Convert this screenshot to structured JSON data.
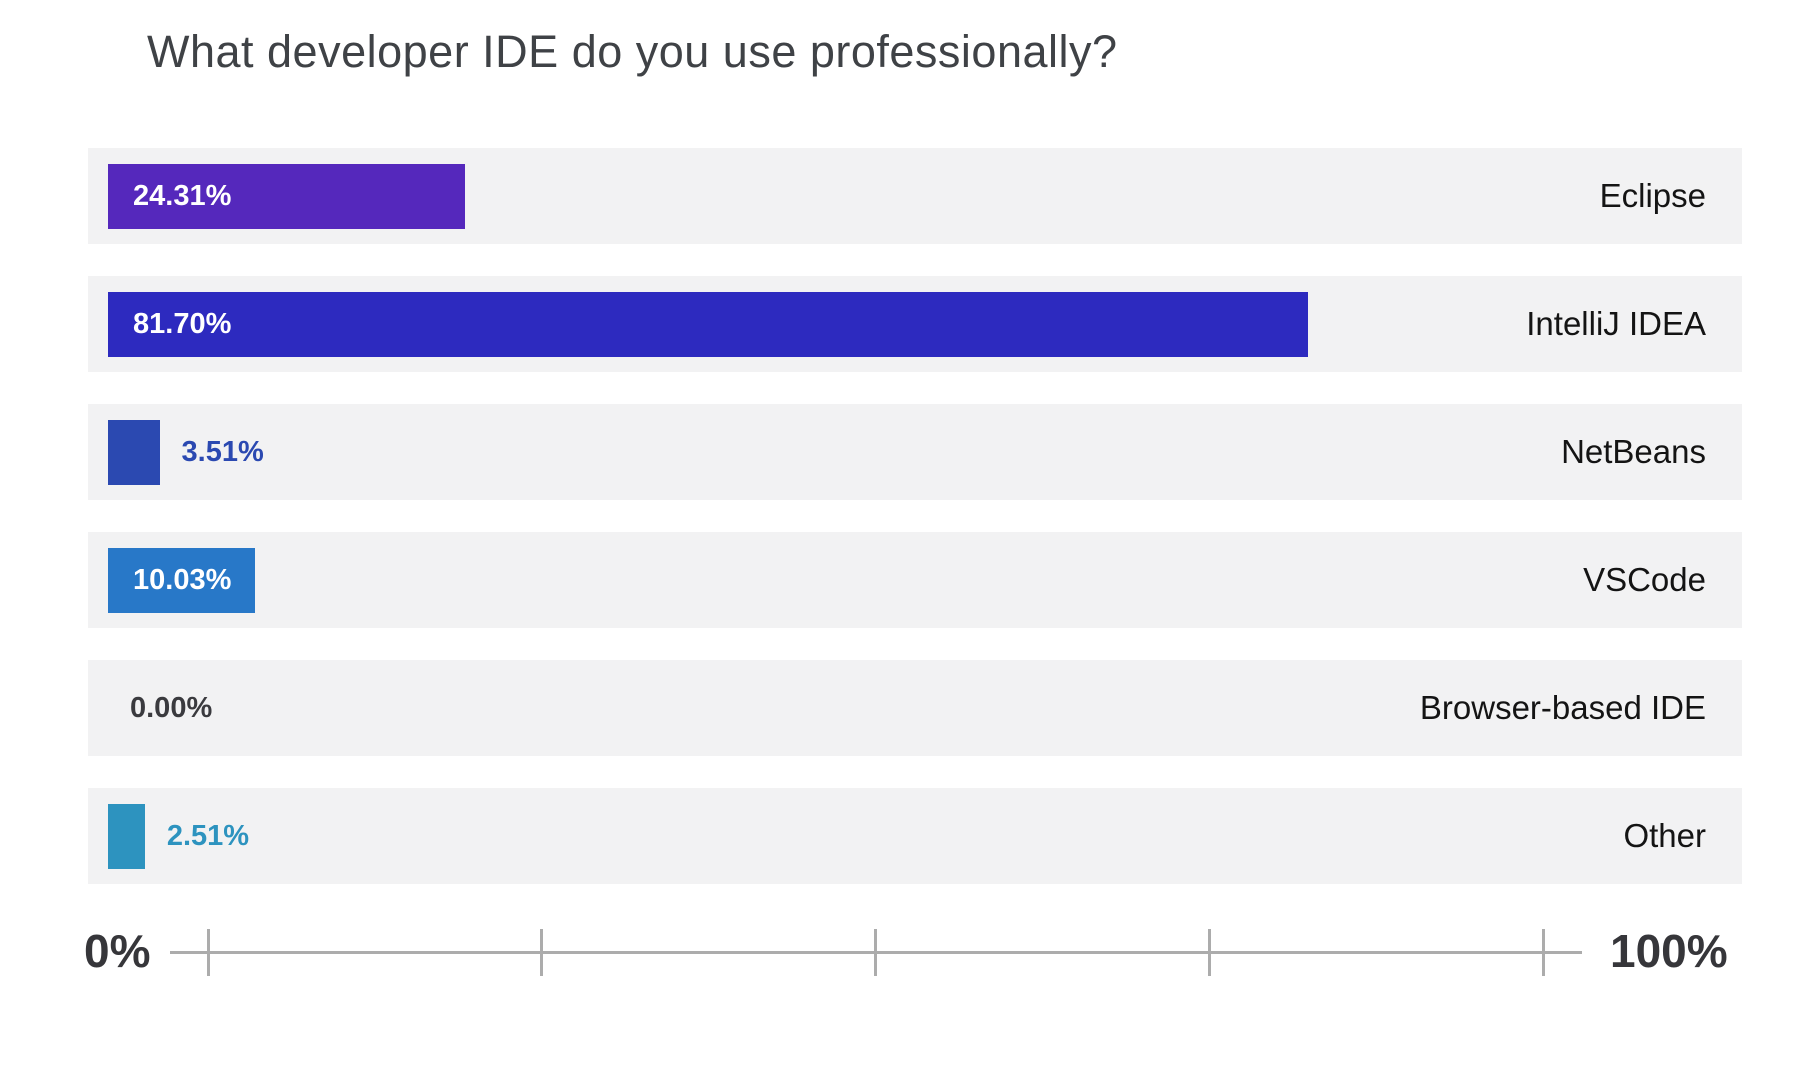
{
  "title": "What developer IDE do you use professionally?",
  "chart_data": {
    "type": "bar",
    "orientation": "horizontal",
    "title": "What developer IDE do you use professionally?",
    "categories": [
      "Eclipse",
      "IntelliJ IDEA",
      "NetBeans",
      "VSCode",
      "Browser-based IDE",
      "Other"
    ],
    "values": [
      24.31,
      81.7,
      3.51,
      10.03,
      0.0,
      2.51
    ],
    "value_labels": [
      "24.31%",
      "81.70%",
      "3.51%",
      "10.03%",
      "0.00%",
      "2.51%"
    ],
    "bar_colors": [
      "#5528bc",
      "#2d2abf",
      "#2b49b1",
      "#2878c8",
      "#f2f2f3",
      "#2d93bf"
    ],
    "label_placement": [
      "inside",
      "inside",
      "outside",
      "inside",
      "outside",
      "outside"
    ],
    "label_colors": [
      "#ffffff",
      "#ffffff",
      "#2b49b1",
      "#ffffff",
      "#3a3a3e",
      "#2d93bf"
    ],
    "xlim": [
      0,
      100
    ],
    "xlabel": "",
    "ylabel": "",
    "grid": "off",
    "legend": "none",
    "row_background": "#f2f2f3",
    "axis": {
      "min_label": "0%",
      "max_label": "100%",
      "tick_count": 5
    }
  }
}
